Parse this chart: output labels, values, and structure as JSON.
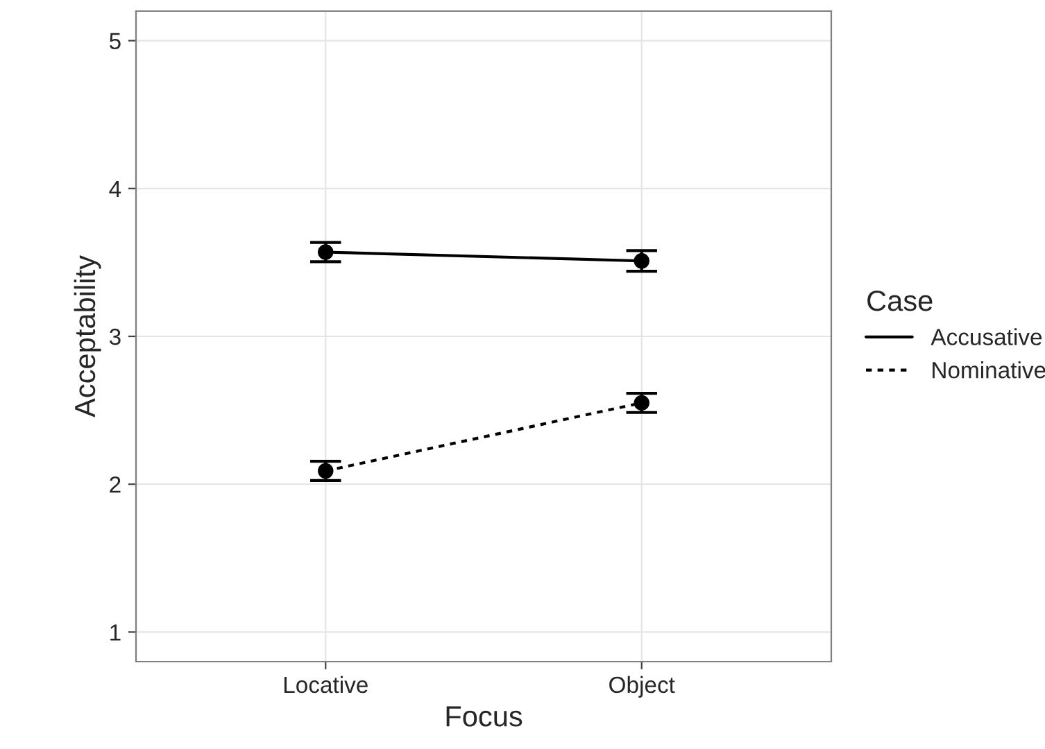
{
  "chart_data": {
    "type": "line",
    "xlabel": "Focus",
    "ylabel": "Acceptability",
    "legend_title": "Case",
    "categories": [
      "Locative",
      "Object"
    ],
    "series": [
      {
        "name": "Accusative",
        "color": "#000000",
        "line_style": "solid",
        "values": [
          3.57,
          3.51
        ],
        "errors": [
          0.065,
          0.07
        ]
      },
      {
        "name": "Nominative",
        "color": "#000000",
        "line_style": "dotted",
        "values": [
          2.09,
          2.55
        ],
        "errors": [
          0.065,
          0.065
        ]
      }
    ],
    "ylim": [
      0.8,
      5.2
    ],
    "yticks": [
      1,
      2,
      3,
      4,
      5
    ],
    "grid": true,
    "legend": "right",
    "marker": "circle"
  }
}
